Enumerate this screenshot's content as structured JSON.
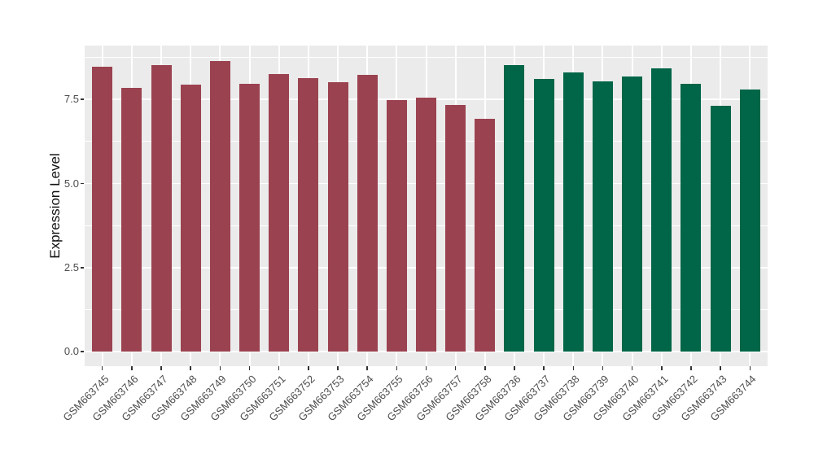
{
  "chart_data": {
    "type": "bar",
    "title": "",
    "xlabel": "",
    "ylabel": "Expression Level",
    "categories": [
      "GSM663745",
      "GSM663746",
      "GSM663747",
      "GSM663748",
      "GSM663749",
      "GSM663750",
      "GSM663751",
      "GSM663752",
      "GSM663753",
      "GSM663754",
      "GSM663755",
      "GSM663756",
      "GSM663757",
      "GSM663758",
      "GSM663736",
      "GSM663737",
      "GSM663738",
      "GSM663739",
      "GSM663740",
      "GSM663741",
      "GSM663742",
      "GSM663743",
      "GSM663744"
    ],
    "values": [
      8.48,
      7.85,
      8.53,
      7.93,
      8.65,
      7.97,
      8.26,
      8.14,
      8.02,
      8.22,
      7.48,
      7.56,
      7.34,
      6.93,
      8.52,
      8.11,
      8.29,
      8.03,
      8.19,
      8.43,
      7.97,
      7.31,
      7.8
    ],
    "groups": [
      {
        "name": "group-maroon",
        "color": "#9B4250",
        "count": 14
      },
      {
        "name": "group-green",
        "color": "#006647",
        "count": 9
      }
    ],
    "yticks": [
      {
        "label": "0.0",
        "value": 0.0
      },
      {
        "label": "2.5",
        "value": 2.5
      },
      {
        "label": "5.0",
        "value": 5.0
      },
      {
        "label": "7.5",
        "value": 7.5
      }
    ],
    "minor_tick_values": [
      1.25,
      3.75,
      6.25,
      8.75
    ],
    "ylim": [
      -0.43,
      9.1
    ],
    "grid": "on",
    "legend_position": "none",
    "bar_width_fraction": 0.69,
    "colors": {
      "panel_background": "#EBEBEB",
      "gridline": "#FFFFFF",
      "tick_label": "#4D4D4D",
      "axis_title": "#111111",
      "tick_mark": "#333333"
    }
  }
}
